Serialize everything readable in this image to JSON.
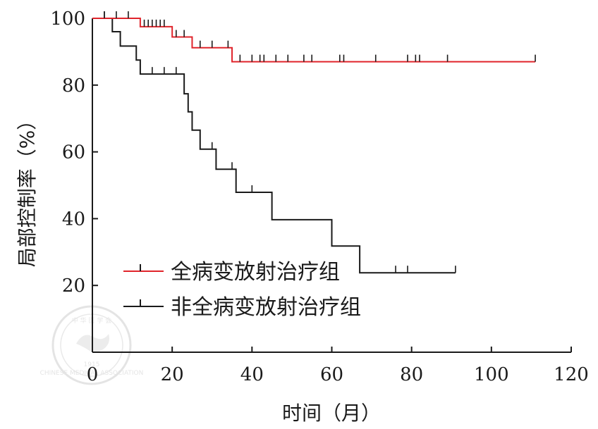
{
  "chart_data": {
    "type": "line",
    "step": true,
    "xlabel": "时间（月）",
    "ylabel": "局部控制率（%）",
    "xlim": [
      0,
      120
    ],
    "ylim": [
      0,
      100
    ],
    "xticks": [
      0,
      20,
      40,
      60,
      80,
      100,
      120
    ],
    "yticks": [
      20,
      40,
      60,
      80,
      100
    ],
    "grid": false,
    "legend_position": "center-left",
    "series": [
      {
        "name": "全病变放射治疗组",
        "color": "#e0242b",
        "steps": [
          [
            0,
            100
          ],
          [
            12,
            97.5
          ],
          [
            20,
            94.4
          ],
          [
            25,
            91.2
          ],
          [
            35,
            87.0
          ],
          [
            111,
            87.0
          ]
        ],
        "censored": [
          [
            3,
            100
          ],
          [
            6,
            100
          ],
          [
            9,
            100
          ],
          [
            13,
            97.5
          ],
          [
            14,
            97.5
          ],
          [
            15,
            97.5
          ],
          [
            16,
            97.5
          ],
          [
            17,
            97.5
          ],
          [
            18,
            97.5
          ],
          [
            21,
            94.4
          ],
          [
            23,
            94.4
          ],
          [
            27,
            91.2
          ],
          [
            30,
            91.2
          ],
          [
            34,
            91.2
          ],
          [
            37,
            87.0
          ],
          [
            40,
            87.0
          ],
          [
            42,
            87.0
          ],
          [
            43,
            87.0
          ],
          [
            46,
            87.0
          ],
          [
            49,
            87.0
          ],
          [
            53,
            87.0
          ],
          [
            55,
            87.0
          ],
          [
            62,
            87.0
          ],
          [
            63,
            87.0
          ],
          [
            71,
            87.0
          ],
          [
            79,
            87.0
          ],
          [
            81,
            87.0
          ],
          [
            82,
            87.0
          ],
          [
            89,
            87.0
          ],
          [
            111,
            87.0
          ]
        ]
      },
      {
        "name": "非全病变放射治疗组",
        "color": "#1a1a1a",
        "steps": [
          [
            0,
            100
          ],
          [
            5,
            96
          ],
          [
            7,
            91.7
          ],
          [
            11,
            87.5
          ],
          [
            12,
            83.3
          ],
          [
            23,
            77.4
          ],
          [
            24,
            72.0
          ],
          [
            25,
            66.5
          ],
          [
            27,
            60.8
          ],
          [
            31,
            54.8
          ],
          [
            36,
            47.9
          ],
          [
            45,
            39.7
          ],
          [
            60,
            31.8
          ],
          [
            67,
            23.8
          ],
          [
            91,
            23.8
          ]
        ],
        "censored": [
          [
            3,
            100
          ],
          [
            15,
            83.3
          ],
          [
            18,
            83.3
          ],
          [
            21,
            83.3
          ],
          [
            30,
            60.8
          ],
          [
            35,
            54.8
          ],
          [
            40,
            47.9
          ],
          [
            76,
            23.8
          ],
          [
            79,
            23.8
          ],
          [
            91,
            23.8
          ]
        ]
      }
    ]
  },
  "watermark": {
    "lines": [
      "中 华 医 学 会",
      "CHINESE MEDICAL ASSOCIATION",
      "1915"
    ]
  }
}
